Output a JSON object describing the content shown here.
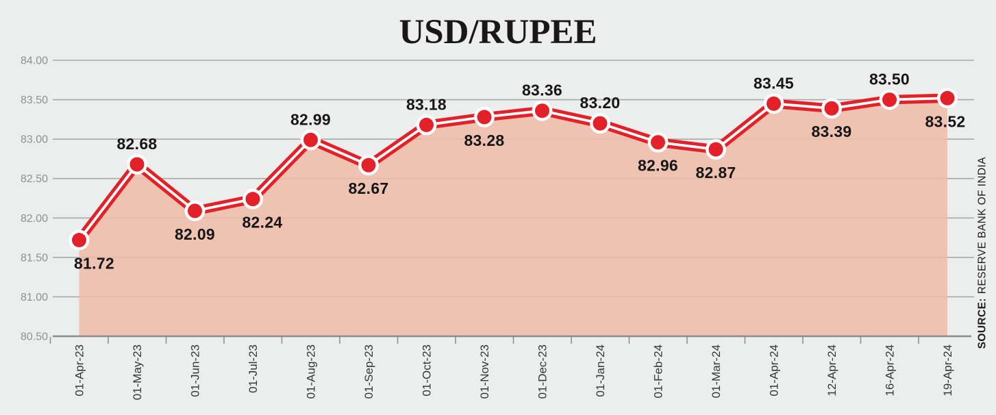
{
  "page": {
    "background": "#eceeed"
  },
  "chart_data": {
    "type": "line",
    "title": "USD/RUPEE",
    "categories": [
      "01-Apr-23",
      "01-May-23",
      "01-Jun-23",
      "01-Jul-23",
      "01-Aug-23",
      "01-Sep-23",
      "01-Oct-23",
      "01-Nov-23",
      "01-Dec-23",
      "01-Jan-24",
      "01-Feb-24",
      "01-Mar-24",
      "01-Apr-24",
      "12-Apr-24",
      "16-Apr-24",
      "19-Apr-24"
    ],
    "values": [
      81.72,
      82.68,
      82.09,
      82.24,
      82.99,
      82.67,
      83.18,
      83.28,
      83.36,
      83.2,
      82.96,
      82.87,
      83.45,
      83.39,
      83.5,
      83.52
    ],
    "point_labels": [
      "81.72",
      "82.68",
      "82.09",
      "82.24",
      "82.99",
      "82.67",
      "83.18",
      "83.28",
      "83.36",
      "83.20",
      "82.96",
      "82.87",
      "83.45",
      "83.39",
      "83.50",
      "83.52"
    ],
    "label_positions": [
      "below",
      "above",
      "below",
      "below",
      "above",
      "below",
      "above",
      "below",
      "above",
      "above",
      "below",
      "below",
      "above",
      "below",
      "above",
      "below"
    ],
    "ylim": [
      80.5,
      84.0
    ],
    "ytick_step": 0.5,
    "yticks": [
      "84.00",
      "83.50",
      "83.00",
      "82.50",
      "82.00",
      "81.50",
      "81.00",
      "80.50"
    ],
    "grid": true,
    "area_fill": true,
    "legend": "none",
    "x_tick_label_rotation_deg": -90,
    "source": "SOURCE: RESERVE BANK OF INDIA"
  },
  "source": {
    "label": "SOURCE:",
    "text": "RESERVE BANK OF INDIA"
  },
  "colors": {
    "background": "#eceeed",
    "line": "#e32128",
    "line_inner": "#ffffff",
    "marker": "#e32128",
    "marker_ring": "#ffffff",
    "area": "#f0bba7",
    "grid": "#a8aaa9",
    "axis": "#8a8d8c",
    "y_tick_label": "#8d9190",
    "x_tick_label": "#333636",
    "point_label": "#161616",
    "title": "#1c1717",
    "source_text": "#1c1c1c"
  }
}
